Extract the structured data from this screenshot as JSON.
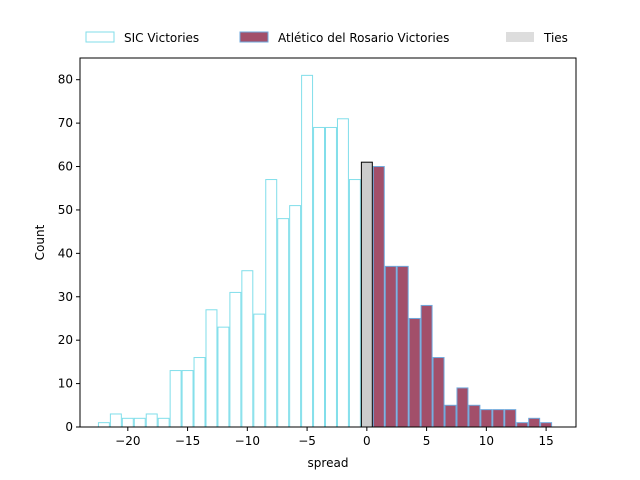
{
  "chart_data": {
    "type": "bar",
    "xlabel": "spread",
    "ylabel": "Count",
    "xlim": [
      -24,
      17.5
    ],
    "ylim": [
      0,
      85
    ],
    "xticks": [
      -20,
      -15,
      -10,
      -5,
      0,
      5,
      10,
      15
    ],
    "yticks": [
      0,
      10,
      20,
      30,
      40,
      50,
      60,
      70,
      80
    ],
    "grid": false,
    "legend_position": "top, horizontal",
    "bin_width": 1,
    "series": [
      {
        "name": "SIC Victories",
        "style": "outline",
        "edge_color": "#80deea",
        "fill_color": "none",
        "x": [
          -22,
          -21,
          -20,
          -19,
          -18,
          -17,
          -16,
          -15,
          -14,
          -13,
          -12,
          -11,
          -10,
          -9,
          -8,
          -7,
          -6,
          -5,
          -4,
          -3,
          -2,
          -1
        ],
        "values": [
          1,
          3,
          2,
          2,
          3,
          2,
          13,
          13,
          16,
          27,
          23,
          31,
          36,
          26,
          57,
          48,
          51,
          81,
          69,
          69,
          71,
          57
        ]
      },
      {
        "name": "Atlético del Rosario Victories",
        "style": "filled",
        "edge_color": "#6fa8dc",
        "fill_color": "#a24f6a",
        "x": [
          1,
          2,
          3,
          4,
          5,
          6,
          7,
          8,
          9,
          10,
          11,
          12,
          13,
          14,
          15
        ],
        "values": [
          60,
          37,
          37,
          25,
          28,
          16,
          5,
          9,
          5,
          4,
          4,
          4,
          1,
          2,
          1
        ]
      },
      {
        "name": "Ties",
        "style": "filled",
        "edge_color": "#000000",
        "fill_color": "#cccccc",
        "legend_fill": "#dddddd",
        "x": [
          0
        ],
        "values": [
          61
        ]
      }
    ]
  }
}
